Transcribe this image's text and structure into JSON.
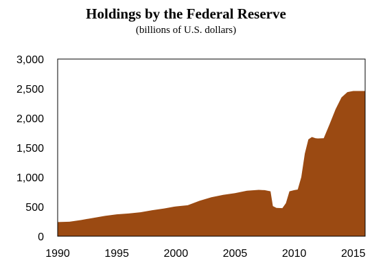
{
  "title": "Holdings by the Federal Reserve",
  "subtitle": "(billions of U.S. dollars)",
  "colors": {
    "fill": "#9b4a12",
    "frame": "#000000"
  },
  "chart_data": {
    "type": "area",
    "title": "Holdings by the Federal Reserve",
    "subtitle": "(billions of U.S. dollars)",
    "xlabel": "",
    "ylabel": "",
    "xlim": [
      1990,
      2016
    ],
    "ylim": [
      0,
      3000
    ],
    "x_ticks": [
      1990,
      1995,
      2000,
      2005,
      2010,
      2015
    ],
    "x_tick_labels": [
      "1990",
      "1995",
      "2000",
      "2005",
      "2010",
      "2015"
    ],
    "y_ticks": [
      0,
      500,
      1000,
      1500,
      2000,
      2500,
      3000
    ],
    "y_tick_labels": [
      "0",
      "500",
      "1,000",
      "1,500",
      "2,000",
      "2,500",
      "3,000"
    ],
    "grid": false,
    "legend": "none",
    "series": [
      {
        "x": [
          1990,
          1991,
          1992,
          1993,
          1994,
          1995,
          1996,
          1997,
          1998,
          1999,
          2000,
          2001,
          2002,
          2003,
          2004,
          2005,
          2006,
          2007,
          2007.5,
          2008,
          2008.2,
          2008.5,
          2009,
          2009.3,
          2009.6,
          2010,
          2010.3,
          2010.6,
          2010.9,
          2011.2,
          2011.5,
          2011.8,
          2012,
          2012.5,
          2013,
          2013.5,
          2014,
          2014.5,
          2015,
          2015.5,
          2016
        ],
        "values": [
          240,
          245,
          275,
          310,
          345,
          370,
          385,
          405,
          440,
          470,
          505,
          525,
          600,
          660,
          700,
          730,
          770,
          785,
          780,
          760,
          510,
          480,
          475,
          560,
          760,
          780,
          790,
          1000,
          1400,
          1640,
          1680,
          1660,
          1655,
          1660,
          1900,
          2150,
          2350,
          2440,
          2460,
          2460,
          2460
        ]
      }
    ]
  }
}
